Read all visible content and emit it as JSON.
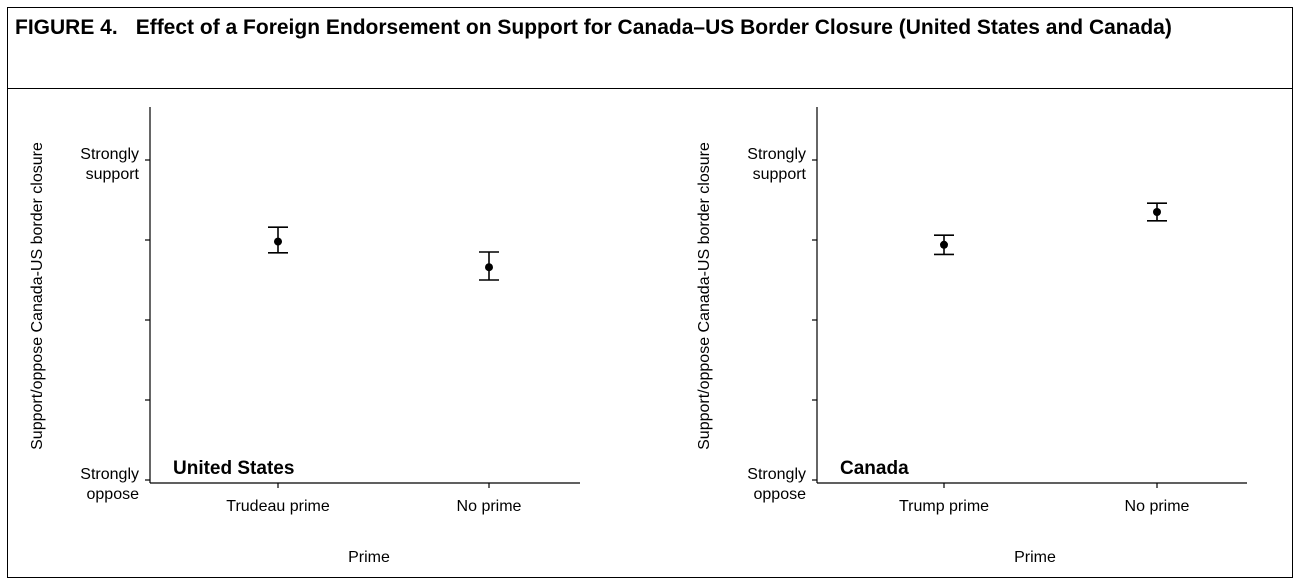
{
  "figure": {
    "number": "FIGURE 4.",
    "title": "Effect of a Foreign Endorsement on Support for Canada–US Border Closure (United States and Canada)"
  },
  "chart_data": [
    {
      "type": "scatter",
      "panel_label": "United States",
      "categories": [
        "Trudeau prime",
        "No prime"
      ],
      "values": [
        3.98,
        3.66
      ],
      "ci_low": [
        3.84,
        3.5
      ],
      "ci_high": [
        4.16,
        3.85
      ],
      "xlabel": "Prime",
      "ylabel": "Support/oppose Canada-US border closure",
      "ylim": [
        1,
        5
      ],
      "yticks": [
        1,
        2,
        3,
        4,
        5
      ],
      "ytick_labels": {
        "1": [
          "Strongly",
          "oppose"
        ],
        "5": [
          "Strongly",
          "support"
        ]
      },
      "grid": false
    },
    {
      "type": "scatter",
      "panel_label": "Canada",
      "categories": [
        "Trump prime",
        "No prime"
      ],
      "values": [
        3.94,
        4.35
      ],
      "ci_low": [
        3.82,
        4.24
      ],
      "ci_high": [
        4.06,
        4.46
      ],
      "xlabel": "Prime",
      "ylabel": "Support/oppose Canada-US border closure",
      "ylim": [
        1,
        5
      ],
      "yticks": [
        1,
        2,
        3,
        4,
        5
      ],
      "ytick_labels": {
        "1": [
          "Strongly",
          "oppose"
        ],
        "5": [
          "Strongly",
          "support"
        ]
      },
      "grid": false
    }
  ]
}
